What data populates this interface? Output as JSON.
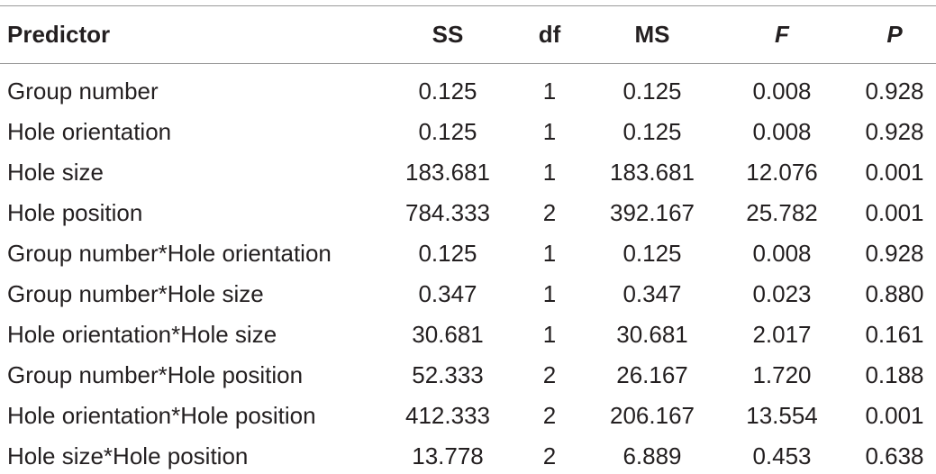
{
  "table": {
    "header": [
      "Predictor",
      "SS",
      "df",
      "MS",
      "F",
      "P"
    ],
    "rows": [
      [
        "Group number",
        "0.125",
        "1",
        "0.125",
        "0.008",
        "0.928"
      ],
      [
        "Hole orientation",
        "0.125",
        "1",
        "0.125",
        "0.008",
        "0.928"
      ],
      [
        "Hole size",
        "183.681",
        "1",
        "183.681",
        "12.076",
        "0.001"
      ],
      [
        "Hole position",
        "784.333",
        "2",
        "392.167",
        "25.782",
        "0.001"
      ],
      [
        "Group number*Hole orientation",
        "0.125",
        "1",
        "0.125",
        "0.008",
        "0.928"
      ],
      [
        "Group number*Hole size",
        "0.347",
        "1",
        "0.347",
        "0.023",
        "0.880"
      ],
      [
        "Hole orientation*Hole size",
        "30.681",
        "1",
        "30.681",
        "2.017",
        "0.161"
      ],
      [
        "Group number*Hole position",
        "52.333",
        "2",
        "26.167",
        "1.720",
        "0.188"
      ],
      [
        "Hole orientation*Hole position",
        "412.333",
        "2",
        "206.167",
        "13.554",
        "0.001"
      ],
      [
        "Hole size*Hole position",
        "13.778",
        "2",
        "6.889",
        "0.453",
        "0.638"
      ]
    ]
  }
}
